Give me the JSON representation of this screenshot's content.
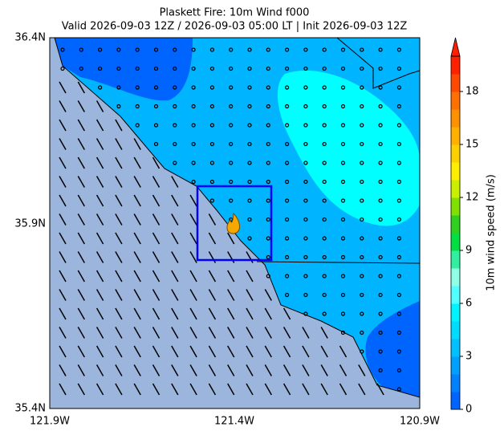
{
  "map": {
    "title": "Plaskett Fire: 10m Wind f000",
    "subtitle": "Valid 2026-09-03 12Z / 2026-09-03 05:00 LT | Init 2026-09-03 12Z",
    "lon_labels": [
      "121.9W",
      "121.4W",
      "120.9W"
    ],
    "lat_labels": [
      "36.4N",
      "35.9N",
      "35.4N"
    ]
  },
  "colorbar": {
    "label": "10m wind speed (m/s)",
    "lim": [
      0,
      20
    ],
    "ticks": [
      0,
      3,
      6,
      9,
      12,
      15,
      18
    ],
    "colors": [
      "#0064ff",
      "#0082ff",
      "#00a0ff",
      "#00c0ff",
      "#00dcff",
      "#00f4ff",
      "#50ffff",
      "#90ffe8",
      "#30f0a0",
      "#00e040",
      "#30d020",
      "#80e000",
      "#c8f000",
      "#ffee00",
      "#ffd000",
      "#ffb000",
      "#ff9000",
      "#ff7000",
      "#ff4800",
      "#ff2000"
    ]
  }
}
